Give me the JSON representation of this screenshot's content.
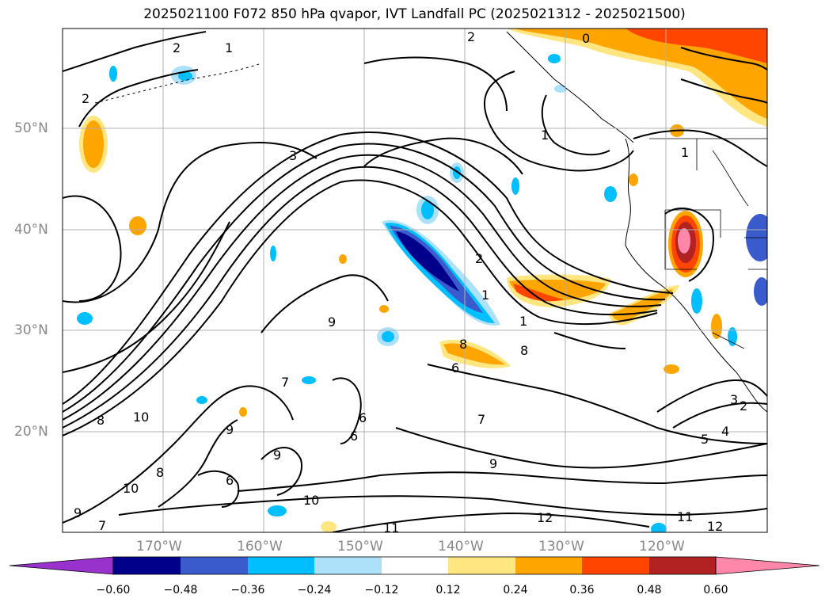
{
  "title": "2025021100 F072 850 hPa qvapor, IVT Landfall PC (2025021312 - 2025021500)",
  "lat_labels": [
    "50°N",
    "40°N",
    "30°N",
    "20°N"
  ],
  "lon_labels": [
    "170°W",
    "160°W",
    "150°W",
    "140°W",
    "130°W",
    "120°W"
  ],
  "colorbar": {
    "ticks": [
      "−0.60",
      "−0.48",
      "−0.36",
      "−0.24",
      "−0.12",
      "0.12",
      "0.24",
      "0.36",
      "0.48",
      "0.60"
    ],
    "colors": [
      "#9932CC",
      "#00008B",
      "#3A5BCC",
      "#00BFFF",
      "#ADE1FA",
      "#FFFFFF",
      "#FFE680",
      "#FFA500",
      "#FF4500",
      "#B22222",
      "#FF88AA"
    ]
  },
  "contour_labels": [
    "2",
    "1",
    "2",
    "2",
    "0",
    "1",
    "1",
    "3",
    "2",
    "1",
    "1",
    "8",
    "8",
    "6",
    "9",
    "7",
    "10",
    "8",
    "6",
    "6",
    "9",
    "9",
    "8",
    "7",
    "10",
    "7",
    "9",
    "10",
    "11",
    "12",
    "11",
    "12",
    "9",
    "5",
    "4",
    "3",
    "2",
    "6"
  ]
}
